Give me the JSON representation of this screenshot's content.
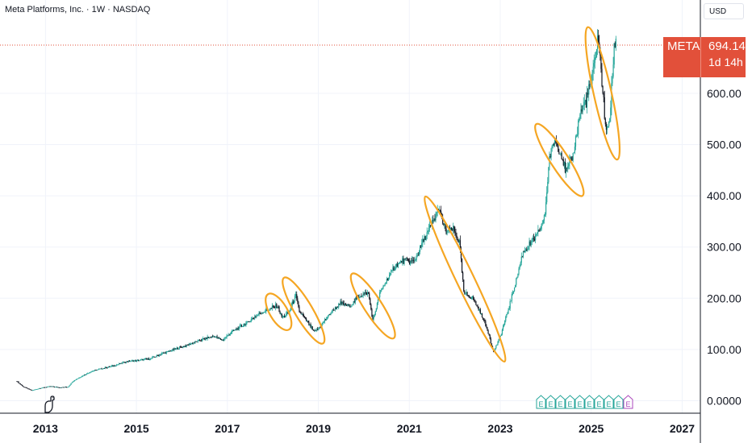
{
  "header": {
    "title": "Meta Platforms, Inc. · 1W · NASDAQ",
    "currency": "USD"
  },
  "price_label": {
    "symbol": "META",
    "price": "694.14",
    "countdown": "1d 14h"
  },
  "logo_icon": "tradingview-dinosaur-icon",
  "colors": {
    "up": "#26a69a",
    "down": "#131722",
    "highlight": "#f5a623",
    "price_line": "#e2503a",
    "earnings": "#26a69a",
    "earnings_upcoming": "#ab47bc"
  },
  "chart_data": {
    "type": "candlestick",
    "title": "Meta Platforms, Inc. · 1W · NASDAQ",
    "x_ticks": [
      "2013",
      "2015",
      "2017",
      "2019",
      "2021",
      "2023",
      "2025",
      "2027"
    ],
    "y_ticks": [
      "0.0000",
      "100.00",
      "200.00",
      "300.00",
      "400.00",
      "500.00",
      "600.00"
    ],
    "ylim": [
      0,
      720
    ],
    "xlim": [
      2012.0,
      2027.4
    ],
    "last_price": 694.14,
    "series": [
      {
        "name": "META",
        "points": [
          [
            2012.37,
            38
          ],
          [
            2012.5,
            28
          ],
          [
            2012.7,
            20
          ],
          [
            2012.9,
            25
          ],
          [
            2013.1,
            28
          ],
          [
            2013.3,
            26
          ],
          [
            2013.5,
            27
          ],
          [
            2013.6,
            38
          ],
          [
            2013.8,
            48
          ],
          [
            2014.0,
            57
          ],
          [
            2014.2,
            62
          ],
          [
            2014.5,
            68
          ],
          [
            2014.8,
            77
          ],
          [
            2015.0,
            78
          ],
          [
            2015.3,
            82
          ],
          [
            2015.6,
            93
          ],
          [
            2015.9,
            102
          ],
          [
            2016.1,
            108
          ],
          [
            2016.4,
            118
          ],
          [
            2016.7,
            126
          ],
          [
            2016.9,
            118
          ],
          [
            2017.1,
            135
          ],
          [
            2017.4,
            150
          ],
          [
            2017.7,
            170
          ],
          [
            2017.9,
            178
          ],
          [
            2018.1,
            185
          ],
          [
            2018.2,
            162
          ],
          [
            2018.35,
            172
          ],
          [
            2018.5,
            205
          ],
          [
            2018.58,
            175
          ],
          [
            2018.75,
            155
          ],
          [
            2018.9,
            135
          ],
          [
            2019.0,
            140
          ],
          [
            2019.3,
            175
          ],
          [
            2019.5,
            190
          ],
          [
            2019.7,
            185
          ],
          [
            2019.9,
            205
          ],
          [
            2020.1,
            210
          ],
          [
            2020.2,
            155
          ],
          [
            2020.35,
            210
          ],
          [
            2020.5,
            235
          ],
          [
            2020.7,
            265
          ],
          [
            2020.9,
            275
          ],
          [
            2021.1,
            270
          ],
          [
            2021.3,
            310
          ],
          [
            2021.5,
            345
          ],
          [
            2021.65,
            375
          ],
          [
            2021.8,
            330
          ],
          [
            2021.95,
            335
          ],
          [
            2022.1,
            310
          ],
          [
            2022.2,
            210
          ],
          [
            2022.4,
            200
          ],
          [
            2022.6,
            165
          ],
          [
            2022.75,
            130
          ],
          [
            2022.85,
            95
          ],
          [
            2023.0,
            125
          ],
          [
            2023.2,
            185
          ],
          [
            2023.35,
            235
          ],
          [
            2023.5,
            290
          ],
          [
            2023.7,
            310
          ],
          [
            2023.85,
            330
          ],
          [
            2023.98,
            360
          ],
          [
            2024.08,
            475
          ],
          [
            2024.2,
            510
          ],
          [
            2024.35,
            480
          ],
          [
            2024.45,
            445
          ],
          [
            2024.6,
            480
          ],
          [
            2024.75,
            560
          ],
          [
            2024.9,
            590
          ],
          [
            2025.05,
            640
          ],
          [
            2025.15,
            715
          ],
          [
            2025.25,
            610
          ],
          [
            2025.33,
            520
          ],
          [
            2025.42,
            560
          ],
          [
            2025.5,
            690
          ],
          [
            2025.55,
            708
          ]
        ]
      }
    ],
    "highlighted_regions": [
      {
        "x_range": [
          2017.95,
          2018.3
        ],
        "y_range": [
          147,
          200
        ]
      },
      {
        "x_range": [
          2018.3,
          2019.05
        ],
        "y_range": [
          120,
          232
        ]
      },
      {
        "x_range": [
          2019.8,
          2020.6
        ],
        "y_range": [
          130,
          240
        ]
      },
      {
        "x_range": [
          2021.4,
          2023.05
        ],
        "y_range": [
          85,
          390
        ]
      },
      {
        "x_range": [
          2023.85,
          2024.75
        ],
        "y_range": [
          408,
          532
        ]
      },
      {
        "x_range": [
          2024.95,
          2025.55
        ],
        "y_range": [
          480,
          720
        ]
      }
    ],
    "earnings_markers": [
      "E",
      "E",
      "E",
      "E",
      "E",
      "E",
      "E",
      "E",
      "E"
    ],
    "upcoming_earnings_marker": "E"
  }
}
